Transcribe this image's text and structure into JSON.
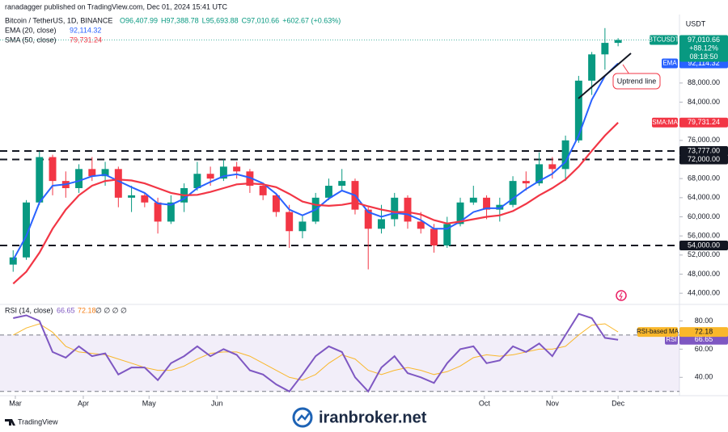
{
  "header": {
    "publisher": "ranadagger published on TradingView.com, Dec 01, 2024 15:41 UTC",
    "brand": "TradingView",
    "watermark": "iranbroker.net",
    "annotation": "Uptrend line"
  },
  "chart_data": [
    {
      "type": "candlestick",
      "title": "Bitcoin / TetherUS, 1D, BINANCE",
      "ohlc_labels": [
        "O96,407.99",
        "H97,388.78",
        "L95,693.88",
        "C97,010.66",
        "+602.67 (+0.63%)"
      ],
      "currency": "USDT",
      "symbol_tag": "BTCUSDT",
      "last_label": "97,010.66",
      "change_label": "+88.12%",
      "countdown": "08:18:50",
      "up_color": "#089981",
      "down_color": "#f23645",
      "x": [
        -1,
        5,
        11,
        17,
        23,
        29,
        35,
        41,
        47,
        53,
        59,
        65,
        71,
        77,
        83,
        89,
        95,
        101,
        107,
        113,
        119,
        125,
        131,
        137,
        143,
        149,
        155,
        161,
        167,
        173,
        179,
        185,
        191,
        197,
        203,
        209,
        215,
        221,
        227,
        233,
        239,
        245,
        251,
        257,
        263,
        269,
        275
      ],
      "open": [
        50000,
        51500,
        63000,
        72500,
        67500,
        66000,
        70000,
        68500,
        70000,
        64000,
        64500,
        63000,
        59000,
        63000,
        66000,
        69000,
        68000,
        70500,
        69500,
        66500,
        64500,
        61000,
        57000,
        59000,
        64000,
        66500,
        67500,
        61500,
        57500,
        59500,
        64000,
        59000,
        57500,
        54000,
        58500,
        63000,
        64000,
        61500,
        62500,
        67500,
        67000,
        71000,
        70000,
        76000,
        88500,
        94000,
        96407.99
      ],
      "high": [
        53000,
        63500,
        73700,
        73000,
        69500,
        71000,
        72500,
        71500,
        70500,
        66500,
        65000,
        64000,
        64500,
        67000,
        71500,
        70500,
        72000,
        71500,
        70000,
        67000,
        65000,
        62500,
        60500,
        65000,
        68000,
        70000,
        68000,
        62000,
        62500,
        65000,
        64500,
        61000,
        58500,
        60000,
        64000,
        66500,
        64500,
        64000,
        68500,
        69500,
        73500,
        72500,
        77000,
        89500,
        94500,
        99500,
        97388.78
      ],
      "low": [
        48500,
        51000,
        62500,
        64500,
        64000,
        65000,
        67500,
        66500,
        62000,
        61000,
        62000,
        56500,
        58500,
        61000,
        65500,
        66500,
        67500,
        68000,
        65000,
        63500,
        60000,
        53500,
        55500,
        58500,
        63500,
        65500,
        60500,
        49000,
        56500,
        58000,
        57500,
        56500,
        52500,
        53500,
        58000,
        62500,
        59500,
        59000,
        62000,
        65500,
        66500,
        68000,
        67500,
        75500,
        85500,
        90800,
        95693.88
      ],
      "close": [
        51500,
        63000,
        72500,
        67500,
        66000,
        70000,
        68500,
        70000,
        64000,
        64500,
        63000,
        59000,
        63000,
        66000,
        69000,
        68000,
        70500,
        69500,
        66500,
        64500,
        61000,
        57000,
        59000,
        64000,
        66500,
        67500,
        61500,
        57500,
        59500,
        64000,
        59000,
        57500,
        54000,
        58500,
        63000,
        64000,
        61500,
        62500,
        67500,
        67000,
        71000,
        70000,
        76000,
        88500,
        94000,
        96407.99,
        97010.66
      ],
      "overlays": [
        {
          "name": "EMA (20, close)",
          "tag": "EMA",
          "color": "#2962ff",
          "last_label": "92,114.32",
          "values": [
            51000,
            56000,
            63000,
            66500,
            66800,
            67500,
            68500,
            68800,
            67500,
            66200,
            65000,
            62800,
            62500,
            63800,
            66000,
            67300,
            68500,
            68900,
            68200,
            67000,
            64800,
            61500,
            60300,
            61500,
            63800,
            65500,
            64500,
            61000,
            60000,
            60800,
            60500,
            59300,
            57500,
            57500,
            59000,
            61000,
            61800,
            61800,
            63800,
            65800,
            67500,
            69000,
            71500,
            77000,
            84500,
            89500,
            92114.32
          ]
        },
        {
          "name": "SMA (50, close)",
          "tag": "SMA:MA",
          "color": "#f23645",
          "last_label": "79,731.24",
          "values": [
            46000,
            48500,
            52500,
            57500,
            61500,
            64500,
            66500,
            67500,
            67800,
            67600,
            67000,
            66000,
            65000,
            64500,
            64600,
            65200,
            66000,
            66800,
            67000,
            66800,
            66200,
            64800,
            63200,
            62500,
            62300,
            62500,
            63000,
            62200,
            61500,
            61000,
            61000,
            60500,
            59300,
            58600,
            59000,
            59500,
            60000,
            60300,
            61200,
            62700,
            64500,
            66000,
            67800,
            70500,
            73800,
            77000,
            79731.24
          ]
        }
      ],
      "levels": [
        {
          "value": 73777,
          "label": "73,777.00"
        },
        {
          "value": 72000,
          "label": "72,000.00"
        },
        {
          "value": 54000,
          "label": "54,000.00"
        }
      ],
      "xlim": [
        -7,
        303
      ],
      "xticks": [
        {
          "value": 0,
          "label": "Mar"
        },
        {
          "value": 31,
          "label": "Apr"
        },
        {
          "value": 61,
          "label": "May"
        },
        {
          "value": 92,
          "label": "Jun"
        },
        {
          "value": 214,
          "label": "Oct"
        },
        {
          "value": 245,
          "label": "Nov"
        },
        {
          "value": 275,
          "label": "Dec"
        }
      ],
      "ylim": [
        42000,
        102000
      ],
      "yticks": [
        {
          "value": 44000,
          "label": "44,000.00"
        },
        {
          "value": 48000,
          "label": "48,000.00"
        },
        {
          "value": 52000,
          "label": "52,000.00"
        },
        {
          "value": 56000,
          "label": "56,000.00"
        },
        {
          "value": 60000,
          "label": "60,000.00"
        },
        {
          "value": 64000,
          "label": "64,000.00"
        },
        {
          "value": 68000,
          "label": "68,000.00"
        },
        {
          "value": 76000,
          "label": "76,000.00"
        },
        {
          "value": 84000,
          "label": "84,000.00"
        },
        {
          "value": 88000,
          "label": "88,000.00"
        }
      ]
    },
    {
      "type": "line",
      "title": "RSI (14, close)",
      "extra_label": "∅ ∅ ∅ ∅",
      "band": [
        30,
        70
      ],
      "band_color": "#7e57c2",
      "series": [
        {
          "name": "RSI",
          "color": "#7e57c2",
          "last_label": "66.65",
          "values": [
            82,
            84,
            80,
            58,
            54,
            62,
            55,
            57,
            42,
            47,
            47,
            38,
            50,
            55,
            62,
            55,
            60,
            56,
            45,
            42,
            35,
            30,
            42,
            55,
            62,
            58,
            40,
            30,
            47,
            55,
            43,
            40,
            36,
            50,
            60,
            62,
            50,
            52,
            62,
            58,
            64,
            55,
            70,
            85,
            82,
            68,
            66.65
          ]
        },
        {
          "name": "RSI-based MA",
          "color": "#f9b72b",
          "last_label": "72.18",
          "values": [
            70,
            75,
            78,
            72,
            62,
            58,
            57,
            56,
            53,
            50,
            47,
            45,
            45,
            48,
            53,
            57,
            58,
            58,
            55,
            50,
            45,
            40,
            38,
            42,
            50,
            56,
            53,
            45,
            42,
            45,
            47,
            45,
            42,
            44,
            48,
            54,
            56,
            55,
            56,
            58,
            60,
            60,
            62,
            70,
            77,
            78,
            72.18
          ]
        }
      ],
      "ylim": [
        27,
        90
      ],
      "yticks": [
        {
          "value": 40,
          "label": "40.00"
        },
        {
          "value": 60,
          "label": "60.00"
        },
        {
          "value": 80,
          "label": "80.00"
        }
      ]
    }
  ]
}
